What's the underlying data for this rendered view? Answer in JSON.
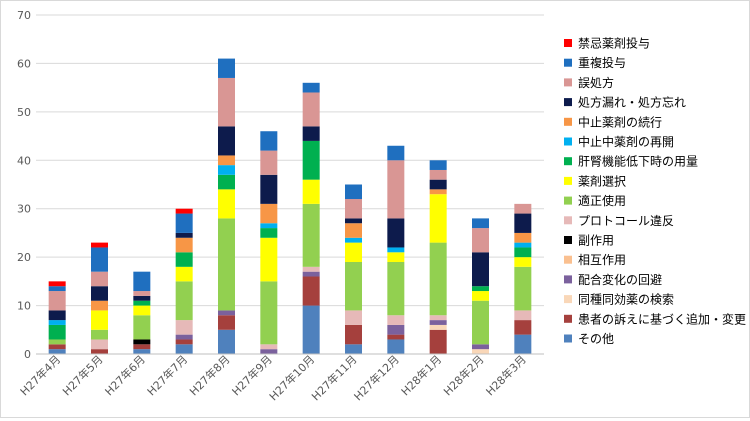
{
  "chart_data": {
    "type": "bar",
    "stacked": true,
    "title": "",
    "xlabel": "",
    "ylabel": "",
    "ylim": [
      0,
      70
    ],
    "yticks": [
      0,
      10,
      20,
      30,
      40,
      50,
      60,
      70
    ],
    "grid": true,
    "legend_position": "right",
    "categories": [
      "H27年4月",
      "H27年5月",
      "H27年6月",
      "H27年7月",
      "H27年8月",
      "H27年9月",
      "H27年10月",
      "H27年11月",
      "H27年12月",
      "H28年1月",
      "H28年2月",
      "H28年3月"
    ],
    "series": [
      {
        "name": "その他",
        "color": "#4f81bd",
        "values": [
          1,
          0,
          1,
          2,
          5,
          0,
          10,
          2,
          3,
          0,
          0,
          4
        ]
      },
      {
        "name": "患者の訴えに基づく追加・変更",
        "color": "#a5403d",
        "values": [
          1,
          1,
          1,
          1,
          3,
          0,
          6,
          4,
          1,
          5,
          0,
          3
        ]
      },
      {
        "name": "同種同効薬の検索",
        "color": "#f9d7b8",
        "values": [
          0,
          0,
          0,
          0,
          0,
          0,
          0,
          0,
          0,
          1,
          1,
          0
        ]
      },
      {
        "name": "配合変化の回避",
        "color": "#7b619d",
        "values": [
          0,
          0,
          0,
          1,
          1,
          1,
          1,
          0,
          2,
          1,
          1,
          0
        ]
      },
      {
        "name": "相互作用",
        "color": "#fac090",
        "values": [
          0,
          0,
          0,
          0,
          0,
          0,
          0,
          0,
          0,
          0,
          0,
          0
        ]
      },
      {
        "name": "副作用",
        "color": "#000000",
        "values": [
          0,
          0,
          1,
          0,
          0,
          0,
          0,
          0,
          0,
          0,
          0,
          0
        ]
      },
      {
        "name": "プロトコール違反",
        "color": "#e6b9b8",
        "values": [
          0,
          2,
          0,
          3,
          0,
          1,
          1,
          3,
          2,
          1,
          0,
          2
        ]
      },
      {
        "name": "適正使用",
        "color": "#92d050",
        "values": [
          1,
          2,
          5,
          8,
          19,
          13,
          13,
          10,
          11,
          15,
          9,
          9
        ]
      },
      {
        "name": "薬剤選択",
        "color": "#ffff00",
        "values": [
          0,
          4,
          2,
          3,
          6,
          9,
          5,
          4,
          2,
          10,
          2,
          2
        ]
      },
      {
        "name": "肝腎機能低下時の用量",
        "color": "#00b050",
        "values": [
          3,
          0,
          1,
          3,
          3,
          2,
          8,
          0,
          0,
          0,
          1,
          2
        ]
      },
      {
        "name": "中止中薬剤の再開",
        "color": "#00b0f0",
        "values": [
          1,
          0,
          0,
          0,
          2,
          1,
          0,
          1,
          1,
          0,
          0,
          1
        ]
      },
      {
        "name": "中止薬剤の続行",
        "color": "#f79646",
        "values": [
          0,
          2,
          0,
          3,
          2,
          4,
          0,
          3,
          0,
          1,
          0,
          2
        ]
      },
      {
        "name": "処方漏れ・処方忘れ",
        "color": "#0d1b4c",
        "values": [
          2,
          3,
          1,
          1,
          6,
          6,
          3,
          1,
          6,
          2,
          7,
          4
        ]
      },
      {
        "name": "誤処方",
        "color": "#d99694",
        "values": [
          4,
          3,
          1,
          0,
          10,
          5,
          7,
          4,
          12,
          2,
          5,
          2
        ]
      },
      {
        "name": "重複投与",
        "color": "#1f6fbf",
        "values": [
          1,
          5,
          4,
          4,
          4,
          4,
          2,
          3,
          3,
          2,
          2,
          0
        ]
      },
      {
        "name": "禁忌薬剤投与",
        "color": "#ff0000",
        "values": [
          1,
          1,
          0,
          1,
          0,
          0,
          0,
          0,
          0,
          0,
          0,
          0
        ]
      }
    ]
  }
}
